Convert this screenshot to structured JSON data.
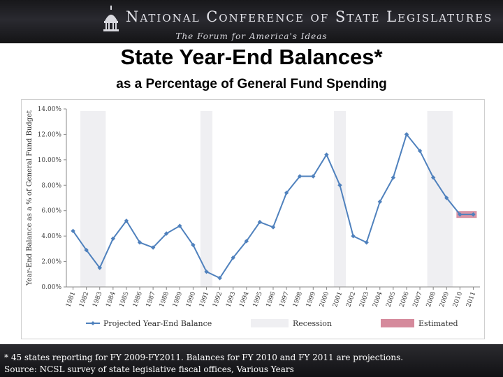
{
  "header": {
    "org_name": "National Conference of State Legislatures",
    "tagline": "The Forum for America's Ideas",
    "logo_icon": "capitol-dome-icon"
  },
  "title": "State Year-End Balances*",
  "subtitle": "as a Percentage of General Fund Spending",
  "chart_data": {
    "type": "line",
    "ylabel": "Year-End Balance as a % of General Fund Budget",
    "xlabel": "",
    "ylim": [
      0,
      14
    ],
    "y_ticks": [
      "0.00%",
      "2.00%",
      "4.00%",
      "6.00%",
      "8.00%",
      "10.00%",
      "12.00%",
      "14.00%"
    ],
    "categories": [
      "1981",
      "1982",
      "1983",
      "1984",
      "1985",
      "1986",
      "1987",
      "1988",
      "1989",
      "1990",
      "1991",
      "1992",
      "1993",
      "1994",
      "1995",
      "1996",
      "1997",
      "1998",
      "1999",
      "2000",
      "2001",
      "2002",
      "2003",
      "2004",
      "2005",
      "2006",
      "2007",
      "2008",
      "2009",
      "2010",
      "2011"
    ],
    "series": [
      {
        "name": "Projected Year-End Balance",
        "color": "#4f81bd",
        "values": [
          4.4,
          2.9,
          1.5,
          3.8,
          5.2,
          3.5,
          3.1,
          4.2,
          4.8,
          3.3,
          1.2,
          0.7,
          2.3,
          3.6,
          5.1,
          4.7,
          7.4,
          8.7,
          8.7,
          10.4,
          8.0,
          4.0,
          3.5,
          6.7,
          8.6,
          12.0,
          10.7,
          8.6,
          7.0,
          5.7,
          5.7
        ]
      }
    ],
    "recession_periods": [
      [
        "1982",
        "1983"
      ],
      [
        "1991",
        "1991"
      ],
      [
        "2001",
        "2001"
      ],
      [
        "2008",
        "2009"
      ]
    ],
    "estimated_range": [
      "2010",
      "2011"
    ],
    "legend": {
      "placement": "bottom",
      "entries": [
        {
          "label": "Projected Year-End Balance",
          "kind": "line",
          "color": "#4f81bd"
        },
        {
          "label": "Recession",
          "kind": "band",
          "color": "#efeff2"
        },
        {
          "label": "Estimated",
          "kind": "band",
          "color": "#d58a9c"
        }
      ]
    },
    "grid": false
  },
  "footnotes": [
    "* 45 states reporting for FY 2009-FY2011.  Balances for FY 2010 and FY 2011 are projections.",
    "Source: NCSL survey of state legislative fiscal offices, Various Years"
  ]
}
